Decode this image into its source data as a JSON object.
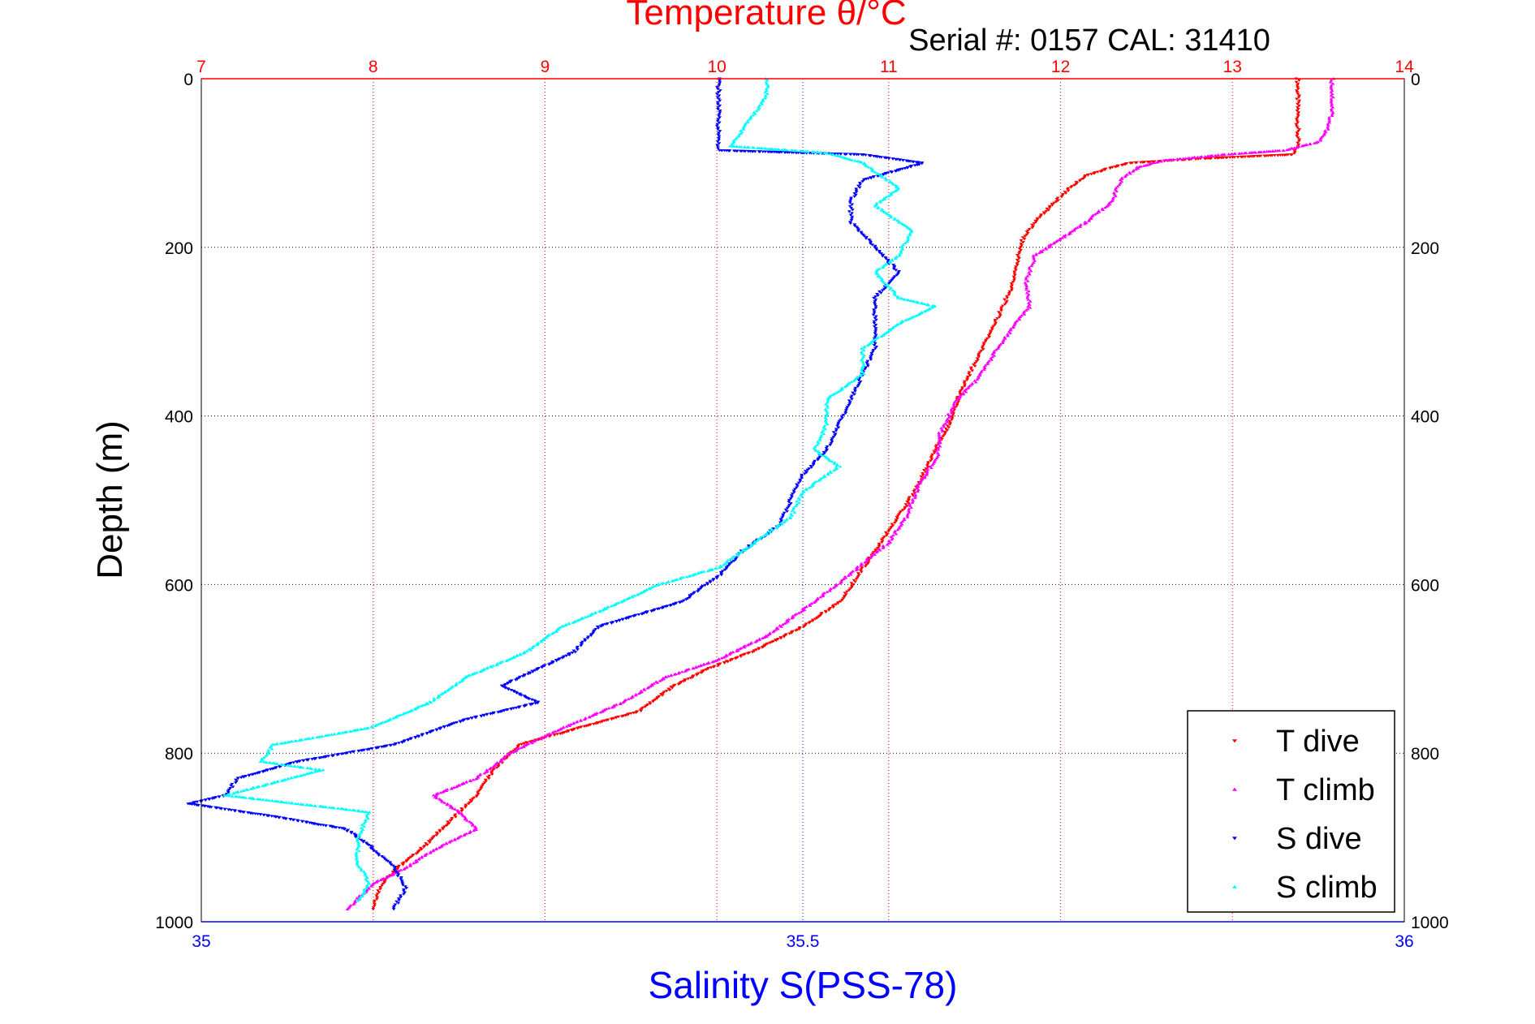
{
  "chart_data": {
    "type": "scatter",
    "title": "Temperature θ/°C",
    "subtitle": "Serial #: 0157  CAL: 31410",
    "xlabel": "Salinity S(PSS-78)",
    "ylabel": "Depth (m)",
    "ylim": [
      1000,
      0
    ],
    "temperature_axis": {
      "range": [
        7,
        14
      ],
      "ticks": [
        "7",
        "8",
        "9",
        "10",
        "11",
        "12",
        "13",
        "14"
      ],
      "color": "#ff0000"
    },
    "salinity_axis": {
      "range": [
        35,
        36
      ],
      "ticks": [
        "35",
        "35.5",
        "36"
      ],
      "color": "#0000ff"
    },
    "depth_axis": {
      "ticks": [
        "0",
        "200",
        "400",
        "600",
        "800",
        "1000"
      ]
    },
    "grid": true,
    "legend_position": "bottom-right",
    "series": [
      {
        "name": "T dive",
        "axis": "temperature",
        "color": "#ff0000",
        "marker": "triangle-down",
        "points": [
          [
            13.38,
            0
          ],
          [
            13.38,
            20
          ],
          [
            13.38,
            40
          ],
          [
            13.38,
            60
          ],
          [
            13.38,
            80
          ],
          [
            13.35,
            90
          ],
          [
            12.8,
            95
          ],
          [
            12.4,
            100
          ],
          [
            12.3,
            105
          ],
          [
            12.15,
            115
          ],
          [
            12.05,
            130
          ],
          [
            11.95,
            150
          ],
          [
            11.85,
            170
          ],
          [
            11.78,
            190
          ],
          [
            11.75,
            215
          ],
          [
            11.72,
            245
          ],
          [
            11.62,
            290
          ],
          [
            11.52,
            330
          ],
          [
            11.42,
            370
          ],
          [
            11.35,
            410
          ],
          [
            11.27,
            440
          ],
          [
            11.2,
            470
          ],
          [
            11.12,
            500
          ],
          [
            11.02,
            530
          ],
          [
            10.92,
            560
          ],
          [
            10.82,
            590
          ],
          [
            10.72,
            620
          ],
          [
            10.5,
            650
          ],
          [
            10.2,
            680
          ],
          [
            9.95,
            700
          ],
          [
            9.75,
            720
          ],
          [
            9.55,
            750
          ],
          [
            9.2,
            770
          ],
          [
            8.85,
            790
          ],
          [
            8.7,
            820
          ],
          [
            8.6,
            850
          ],
          [
            8.45,
            880
          ],
          [
            8.3,
            910
          ],
          [
            8.15,
            935
          ],
          [
            8.05,
            955
          ],
          [
            8.0,
            985
          ]
        ]
      },
      {
        "name": "T climb",
        "axis": "temperature",
        "color": "#ff00ff",
        "marker": "triangle-up",
        "points": [
          [
            13.58,
            0
          ],
          [
            13.58,
            20
          ],
          [
            13.58,
            40
          ],
          [
            13.55,
            60
          ],
          [
            13.5,
            75
          ],
          [
            13.3,
            85
          ],
          [
            12.95,
            90
          ],
          [
            12.6,
            97
          ],
          [
            12.45,
            105
          ],
          [
            12.35,
            120
          ],
          [
            12.3,
            145
          ],
          [
            12.15,
            170
          ],
          [
            12.0,
            190
          ],
          [
            11.85,
            210
          ],
          [
            11.8,
            240
          ],
          [
            11.82,
            270
          ],
          [
            11.72,
            295
          ],
          [
            11.6,
            330
          ],
          [
            11.5,
            360
          ],
          [
            11.4,
            380
          ],
          [
            11.3,
            420
          ],
          [
            11.28,
            450
          ],
          [
            11.18,
            480
          ],
          [
            11.1,
            520
          ],
          [
            11.0,
            550
          ],
          [
            10.85,
            575
          ],
          [
            10.7,
            600
          ],
          [
            10.5,
            630
          ],
          [
            10.3,
            660
          ],
          [
            10.0,
            690
          ],
          [
            9.7,
            710
          ],
          [
            9.45,
            740
          ],
          [
            9.05,
            775
          ],
          [
            8.8,
            800
          ],
          [
            8.6,
            830
          ],
          [
            8.35,
            850
          ],
          [
            8.5,
            870
          ],
          [
            8.6,
            890
          ],
          [
            8.35,
            915
          ],
          [
            8.2,
            935
          ],
          [
            8.0,
            955
          ],
          [
            7.85,
            985
          ]
        ]
      },
      {
        "name": "S dive",
        "axis": "salinity",
        "color": "#0000ff",
        "marker": "triangle-down",
        "points": [
          [
            35.43,
            0
          ],
          [
            35.43,
            30
          ],
          [
            35.43,
            60
          ],
          [
            35.43,
            85
          ],
          [
            35.55,
            90
          ],
          [
            35.6,
            100
          ],
          [
            35.55,
            120
          ],
          [
            35.54,
            145
          ],
          [
            35.54,
            170
          ],
          [
            35.56,
            200
          ],
          [
            35.58,
            230
          ],
          [
            35.56,
            260
          ],
          [
            35.56,
            290
          ],
          [
            35.56,
            320
          ],
          [
            35.55,
            350
          ],
          [
            35.54,
            380
          ],
          [
            35.53,
            410
          ],
          [
            35.52,
            440
          ],
          [
            35.5,
            470
          ],
          [
            35.49,
            500
          ],
          [
            35.48,
            530
          ],
          [
            35.45,
            560
          ],
          [
            35.43,
            590
          ],
          [
            35.4,
            620
          ],
          [
            35.33,
            650
          ],
          [
            35.31,
            680
          ],
          [
            35.28,
            700
          ],
          [
            35.25,
            720
          ],
          [
            35.28,
            740
          ],
          [
            35.22,
            760
          ],
          [
            35.16,
            790
          ],
          [
            35.08,
            810
          ],
          [
            35.03,
            830
          ],
          [
            35.02,
            850
          ],
          [
            34.99,
            860
          ],
          [
            35.06,
            875
          ],
          [
            35.12,
            890
          ],
          [
            35.14,
            910
          ],
          [
            35.16,
            935
          ],
          [
            35.17,
            960
          ],
          [
            35.16,
            985
          ]
        ]
      },
      {
        "name": "S climb",
        "axis": "salinity",
        "color": "#00ffff",
        "marker": "triangle-up",
        "points": [
          [
            35.47,
            0
          ],
          [
            35.47,
            20
          ],
          [
            35.46,
            40
          ],
          [
            35.45,
            60
          ],
          [
            35.44,
            80
          ],
          [
            35.52,
            88
          ],
          [
            35.55,
            100
          ],
          [
            35.58,
            130
          ],
          [
            35.56,
            150
          ],
          [
            35.59,
            180
          ],
          [
            35.58,
            210
          ],
          [
            35.56,
            230
          ],
          [
            35.58,
            260
          ],
          [
            35.61,
            270
          ],
          [
            35.58,
            290
          ],
          [
            35.55,
            320
          ],
          [
            35.55,
            350
          ],
          [
            35.52,
            380
          ],
          [
            35.52,
            410
          ],
          [
            35.51,
            440
          ],
          [
            35.53,
            460
          ],
          [
            35.5,
            490
          ],
          [
            35.49,
            520
          ],
          [
            35.46,
            550
          ],
          [
            35.43,
            580
          ],
          [
            35.38,
            600
          ],
          [
            35.35,
            620
          ],
          [
            35.3,
            650
          ],
          [
            35.27,
            680
          ],
          [
            35.22,
            710
          ],
          [
            35.19,
            740
          ],
          [
            35.14,
            770
          ],
          [
            35.06,
            790
          ],
          [
            35.05,
            810
          ],
          [
            35.1,
            820
          ],
          [
            35.02,
            850
          ],
          [
            35.14,
            870
          ],
          [
            35.13,
            900
          ],
          [
            35.13,
            930
          ],
          [
            35.14,
            955
          ],
          [
            35.13,
            975
          ]
        ]
      }
    ]
  }
}
